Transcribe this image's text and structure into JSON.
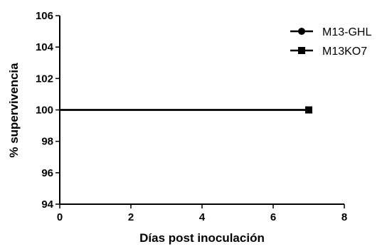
{
  "chart_data": {
    "type": "line",
    "title": "",
    "xlabel": "Días post inoculación",
    "ylabel": "% supervivencia",
    "xlim": [
      0,
      8
    ],
    "ylim": [
      94,
      106
    ],
    "x_ticks": [
      "0",
      "2",
      "4",
      "6",
      "8"
    ],
    "y_ticks": [
      "94",
      "96",
      "98",
      "100",
      "102",
      "104",
      "106"
    ],
    "grid": false,
    "legend_position": "top-right",
    "series": [
      {
        "name": "M13-GHL",
        "marker": "circle",
        "color": "#000000",
        "x": [
          0,
          7
        ],
        "y": [
          100,
          100
        ]
      },
      {
        "name": "M13KO7",
        "marker": "square",
        "color": "#000000",
        "x": [
          0,
          7
        ],
        "y": [
          100,
          100
        ]
      }
    ]
  }
}
